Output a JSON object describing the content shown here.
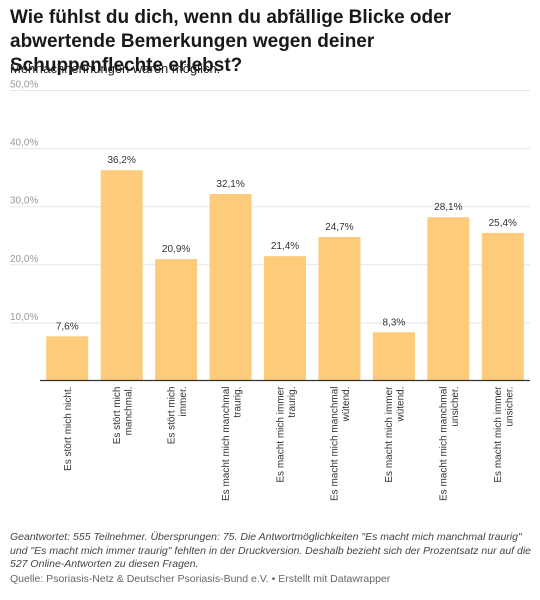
{
  "header": {
    "title": "Wie fühlst du dich, wenn du abfällige Blicke oder abwertende Bemerkungen wegen deiner Schuppenflechte erlebst?",
    "subtitle": "Mehrfachnennungen waren möglich."
  },
  "footer": {
    "notes": "Geantwortet: 555 Teilnehmer. Übersprungen: 75. Die Antwortmöglichkeiten \"Es macht mich manchmal traurig\" und \"Es macht mich immer traurig\" fehlten in der Druckversion. Deshalb bezieht sich der Prozentsatz nur auf die 527 Online-Antworten zu diesen Fragen.",
    "source": "Quelle: Psoriasis-Netz & Deutscher Psoriasis-Bund e.V. • Erstellt mit Datawrapper"
  },
  "colors": {
    "bar": "#fecb7b",
    "grid": "#e5e5e5",
    "axis": "#333333",
    "tick_text": "#999999",
    "label_text": "#333333"
  },
  "chart_data": {
    "type": "bar",
    "categories": [
      "Es stört mich nicht.",
      "Es stört mich manchmal.",
      "Es stört mich immer.",
      "Es macht mich manchmal traurig.",
      "Es macht mich immer traurig.",
      "Es macht mich manchmal wütend.",
      "Es macht mich immer wütend.",
      "Es macht mich manchmal unsicher.",
      "Es macht mich immer unsicher."
    ],
    "category_lines": [
      [
        "Es stört mich nicht."
      ],
      [
        "Es stört mich",
        "manchmal."
      ],
      [
        "Es stört mich",
        "immer."
      ],
      [
        "Es macht mich manchmal",
        "traurig."
      ],
      [
        "Es macht mich immer",
        "traurig."
      ],
      [
        "Es macht mich manchmal",
        "wütend."
      ],
      [
        "Es macht mich immer",
        "wütend."
      ],
      [
        "Es macht mich manchmal",
        "unsicher."
      ],
      [
        "Es macht mich immer",
        "unsicher."
      ]
    ],
    "values": [
      7.6,
      36.2,
      20.9,
      32.1,
      21.4,
      24.7,
      8.3,
      28.1,
      25.4
    ],
    "value_labels": [
      "7,6%",
      "36,2%",
      "20,9%",
      "32,1%",
      "21,4%",
      "24,7%",
      "8,3%",
      "28,1%",
      "25,4%"
    ],
    "ylim": [
      0,
      50
    ],
    "yticks": [
      10,
      20,
      30,
      40,
      50
    ],
    "ytick_labels": [
      "10,0%",
      "20,0%",
      "30,0%",
      "40,0%",
      "50,0%"
    ],
    "grid": true,
    "legend": "none"
  }
}
